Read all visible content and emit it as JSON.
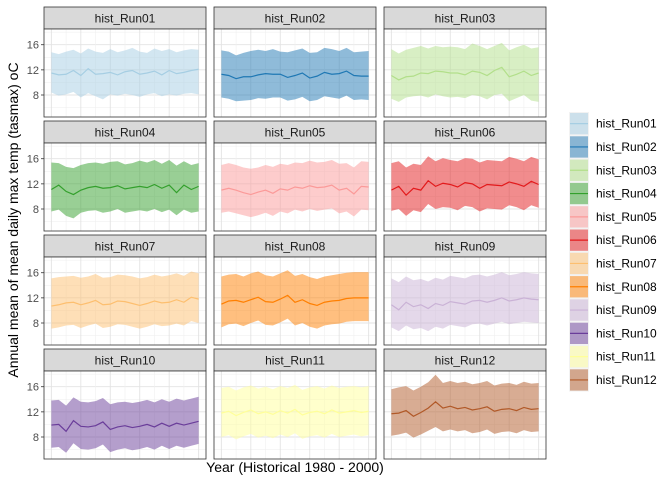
{
  "chart_data": {
    "type": "line",
    "facet_layout": "3 columns x 4 rows",
    "xlabel": "Year (Historical 1980 - 2000)",
    "ylabel": "Annual mean of mean daily max temp (tasmax) oC",
    "ylim": [
      4.5,
      18.5
    ],
    "yticks": [
      8,
      12,
      16
    ],
    "x": [
      1980,
      1981,
      1982,
      1983,
      1984,
      1985,
      1986,
      1987,
      1988,
      1989,
      1990,
      1991,
      1992,
      1993,
      1994,
      1995,
      1996,
      1997,
      1998,
      1999,
      2000
    ],
    "xlim": [
      1979,
      2001
    ],
    "grid": true,
    "legend_placement": "right",
    "band_meaning": "ribbon around annual mean",
    "series": [
      {
        "name": "hist_Run01",
        "line_color": "#a6cee3",
        "fill_color": "#a6cee3",
        "mean": [
          11.5,
          11.2,
          11.3,
          11.9,
          11.1,
          12.2,
          11.3,
          11.4,
          11.6,
          11.2,
          11.7,
          11.9,
          11.3,
          11.5,
          11.8,
          11.2,
          11.9,
          11.4,
          11.6,
          11.9,
          12.1
        ],
        "upper": [
          14.8,
          14.5,
          14.9,
          15.2,
          14.6,
          15.4,
          14.9,
          14.7,
          15.3,
          14.8,
          15.1,
          15.5,
          14.9,
          14.7,
          15.4,
          15.0,
          15.3,
          14.8,
          15.1,
          15.3,
          15.2
        ],
        "lower": [
          8.4,
          7.9,
          8.1,
          8.5,
          7.6,
          8.3,
          7.8,
          7.3,
          8.1,
          7.9,
          8.2,
          8.0,
          7.7,
          8.1,
          8.3,
          7.8,
          8.1,
          7.9,
          8.2,
          8.3,
          8.1
        ]
      },
      {
        "name": "hist_Run02",
        "line_color": "#1f78b4",
        "fill_color": "#1f78b4",
        "mean": [
          11.3,
          11.1,
          10.6,
          10.9,
          10.9,
          11.2,
          11.4,
          11.3,
          11.3,
          10.8,
          11.1,
          11.5,
          10.7,
          11.0,
          11.6,
          11.3,
          11.4,
          11.8,
          11.1,
          11.0,
          11.0
        ],
        "upper": [
          15.1,
          14.9,
          14.3,
          14.7,
          15.0,
          15.2,
          15.0,
          15.3,
          14.9,
          14.8,
          15.1,
          15.4,
          14.7,
          14.8,
          15.5,
          15.3,
          15.0,
          15.5,
          14.8,
          14.9,
          15.0
        ],
        "lower": [
          7.6,
          7.4,
          7.0,
          7.1,
          7.2,
          7.5,
          7.4,
          7.6,
          7.6,
          7.1,
          7.3,
          7.7,
          7.0,
          7.2,
          7.8,
          7.6,
          7.4,
          7.9,
          7.2,
          7.3,
          7.2
        ]
      },
      {
        "name": "hist_Run03",
        "line_color": "#b2df8a",
        "fill_color": "#b2df8a",
        "mean": [
          11.1,
          10.4,
          10.9,
          11.0,
          11.5,
          11.4,
          11.8,
          11.7,
          11.5,
          11.5,
          11.2,
          11.8,
          11.6,
          11.1,
          11.9,
          12.4,
          10.9,
          11.3,
          11.8,
          11.1,
          11.5
        ],
        "upper": [
          15.3,
          14.6,
          15.2,
          15.5,
          15.8,
          15.4,
          15.8,
          15.6,
          15.7,
          15.6,
          15.3,
          16.2,
          15.8,
          15.3,
          15.8,
          16.3,
          15.1,
          15.6,
          16.0,
          15.4,
          15.6
        ],
        "lower": [
          7.4,
          6.9,
          7.6,
          7.8,
          7.9,
          7.6,
          8.1,
          7.8,
          7.6,
          7.7,
          7.5,
          8.0,
          7.8,
          7.3,
          8.0,
          8.2,
          7.0,
          7.5,
          8.0,
          7.1,
          6.9
        ]
      },
      {
        "name": "hist_Run04",
        "line_color": "#33a02c",
        "fill_color": "#33a02c",
        "mean": [
          11.1,
          11.8,
          10.8,
          10.3,
          11.0,
          11.4,
          11.6,
          11.3,
          11.4,
          11.7,
          11.2,
          11.4,
          11.6,
          11.4,
          11.9,
          11.3,
          11.8,
          10.6,
          11.8,
          11.1,
          11.6
        ],
        "upper": [
          15.4,
          15.3,
          14.7,
          14.5,
          15.0,
          15.3,
          15.4,
          15.2,
          15.5,
          15.6,
          15.1,
          15.3,
          15.7,
          15.4,
          15.8,
          15.2,
          15.8,
          14.9,
          15.6,
          15.0,
          15.3
        ],
        "lower": [
          7.6,
          7.9,
          6.9,
          6.5,
          7.4,
          7.7,
          7.8,
          7.4,
          7.6,
          8.0,
          7.4,
          7.6,
          7.8,
          7.6,
          8.0,
          7.5,
          7.9,
          7.0,
          7.9,
          7.4,
          7.6
        ]
      },
      {
        "name": "hist_Run05",
        "line_color": "#fb9a99",
        "fill_color": "#fb9a99",
        "mean": [
          11.0,
          11.3,
          11.0,
          10.6,
          10.3,
          10.7,
          11.0,
          10.5,
          11.2,
          11.0,
          11.5,
          11.3,
          11.7,
          11.4,
          11.5,
          11.8,
          11.0,
          11.3,
          10.4,
          11.6,
          11.5
        ],
        "upper": [
          15.0,
          15.3,
          15.0,
          14.6,
          14.4,
          14.6,
          15.0,
          14.7,
          15.2,
          15.0,
          15.4,
          15.3,
          15.7,
          15.4,
          15.5,
          15.8,
          15.2,
          15.3,
          14.6,
          15.6,
          15.5
        ],
        "lower": [
          7.4,
          7.6,
          7.3,
          7.0,
          6.7,
          7.0,
          7.4,
          6.9,
          7.6,
          7.3,
          7.9,
          7.6,
          8.0,
          7.7,
          7.9,
          8.1,
          7.3,
          7.6,
          6.8,
          7.9,
          7.8
        ]
      },
      {
        "name": "hist_Run06",
        "line_color": "#e31a1c",
        "fill_color": "#e31a1c",
        "mean": [
          11.0,
          11.6,
          10.2,
          11.3,
          11.0,
          12.5,
          11.6,
          12.1,
          11.9,
          11.5,
          12.2,
          12.0,
          11.3,
          11.9,
          11.8,
          11.7,
          12.3,
          12.0,
          11.6,
          12.4,
          11.9
        ],
        "upper": [
          15.3,
          15.6,
          14.6,
          15.2,
          15.0,
          16.4,
          15.6,
          16.1,
          15.8,
          15.6,
          16.1,
          16.0,
          15.4,
          15.8,
          15.7,
          15.6,
          16.3,
          16.0,
          15.6,
          16.3,
          15.9
        ],
        "lower": [
          7.7,
          8.0,
          6.9,
          7.8,
          7.5,
          8.8,
          8.0,
          8.3,
          8.2,
          7.8,
          8.5,
          8.3,
          7.6,
          8.1,
          8.0,
          7.9,
          8.6,
          8.3,
          7.8,
          8.6,
          8.2
        ]
      },
      {
        "name": "hist_Run07",
        "line_color": "#fdbf6f",
        "fill_color": "#fdbf6f",
        "mean": [
          10.7,
          10.9,
          11.2,
          11.3,
          10.9,
          11.2,
          11.6,
          10.9,
          11.0,
          11.5,
          11.4,
          11.1,
          10.8,
          11.1,
          11.5,
          11.2,
          11.3,
          11.7,
          11.3,
          12.1,
          11.8
        ],
        "upper": [
          15.1,
          15.3,
          15.4,
          15.5,
          15.2,
          15.4,
          15.8,
          15.2,
          15.3,
          15.7,
          15.6,
          15.4,
          15.1,
          15.3,
          15.7,
          15.4,
          15.6,
          15.9,
          15.5,
          16.2,
          15.9
        ],
        "lower": [
          7.1,
          7.3,
          7.6,
          7.7,
          7.2,
          7.6,
          7.9,
          7.2,
          7.4,
          7.8,
          7.7,
          7.4,
          7.1,
          7.4,
          7.8,
          7.5,
          7.6,
          7.9,
          7.6,
          8.3,
          8.0
        ]
      },
      {
        "name": "hist_Run08",
        "line_color": "#ff7f00",
        "fill_color": "#ff7f00",
        "mean": [
          11.0,
          11.5,
          11.6,
          11.3,
          11.7,
          12.1,
          11.4,
          11.3,
          11.8,
          12.4,
          11.3,
          11.7,
          11.1,
          10.8,
          11.3,
          11.5,
          11.6,
          11.9,
          12.0,
          12.0,
          12.0
        ],
        "upper": [
          15.4,
          15.7,
          15.8,
          15.4,
          15.9,
          16.2,
          15.6,
          15.4,
          15.9,
          16.4,
          15.5,
          15.8,
          15.3,
          15.0,
          15.4,
          15.6,
          15.8,
          16.0,
          16.1,
          16.1,
          16.1
        ],
        "lower": [
          7.3,
          7.8,
          7.9,
          7.5,
          8.0,
          8.4,
          7.7,
          7.6,
          8.1,
          8.7,
          7.6,
          8.0,
          7.4,
          7.1,
          7.6,
          7.8,
          7.9,
          8.2,
          8.3,
          8.3,
          8.3
        ]
      },
      {
        "name": "hist_Run09",
        "line_color": "#cab2d6",
        "fill_color": "#cab2d6",
        "mean": [
          10.9,
          10.1,
          11.3,
          10.6,
          10.9,
          10.3,
          11.1,
          10.8,
          11.4,
          11.2,
          11.0,
          11.5,
          11.6,
          11.3,
          11.6,
          12.0,
          11.5,
          11.7,
          12.0,
          11.8,
          11.7
        ],
        "upper": [
          15.1,
          14.5,
          15.4,
          14.8,
          15.0,
          14.6,
          15.2,
          14.9,
          15.5,
          15.3,
          15.1,
          15.6,
          15.7,
          15.4,
          15.7,
          16.1,
          15.6,
          15.8,
          16.1,
          15.9,
          15.8
        ],
        "lower": [
          7.3,
          6.7,
          7.6,
          7.0,
          7.2,
          6.7,
          7.4,
          7.1,
          7.7,
          7.5,
          7.3,
          7.8,
          7.9,
          7.6,
          7.9,
          8.2,
          7.8,
          8.0,
          8.2,
          8.1,
          8.0
        ]
      },
      {
        "name": "hist_Run10",
        "line_color": "#6a3d9a",
        "fill_color": "#6a3d9a",
        "mean": [
          9.9,
          10.0,
          8.9,
          10.6,
          9.7,
          9.6,
          9.8,
          10.4,
          9.2,
          9.6,
          9.8,
          9.5,
          9.7,
          10.0,
          9.6,
          10.2,
          9.7,
          10.2,
          9.9,
          10.2,
          10.5
        ],
        "upper": [
          13.8,
          13.9,
          13.0,
          14.3,
          13.6,
          13.5,
          13.7,
          14.2,
          13.2,
          13.5,
          13.6,
          13.4,
          13.6,
          13.9,
          13.5,
          14.0,
          13.6,
          14.1,
          13.8,
          14.1,
          14.4
        ],
        "lower": [
          6.3,
          6.4,
          5.5,
          7.0,
          6.1,
          6.0,
          6.2,
          6.8,
          5.6,
          6.0,
          6.2,
          5.9,
          6.1,
          6.4,
          6.0,
          6.6,
          6.1,
          6.6,
          6.3,
          6.6,
          6.9
        ]
      },
      {
        "name": "hist_Run11",
        "line_color": "#ffff99",
        "fill_color": "#ffff99",
        "mean": [
          11.8,
          12.1,
          11.4,
          11.9,
          12.3,
          11.7,
          12.0,
          11.6,
          12.2,
          11.8,
          12.4,
          11.5,
          11.9,
          12.1,
          11.7,
          12.3,
          11.8,
          12.0,
          12.2,
          11.9,
          12.1
        ],
        "upper": [
          15.8,
          16.0,
          15.4,
          15.9,
          16.2,
          15.7,
          16.0,
          15.6,
          16.1,
          15.8,
          16.3,
          15.5,
          15.9,
          16.1,
          15.7,
          16.2,
          15.8,
          16.0,
          16.1,
          15.9,
          16.1
        ],
        "lower": [
          8.0,
          8.3,
          7.6,
          8.1,
          8.5,
          7.9,
          8.2,
          7.8,
          8.4,
          8.0,
          8.6,
          7.7,
          8.1,
          8.3,
          7.9,
          8.5,
          8.0,
          8.2,
          8.4,
          8.1,
          8.3
        ]
      },
      {
        "name": "hist_Run12",
        "line_color": "#b15928",
        "fill_color": "#b15928",
        "mean": [
          11.7,
          11.8,
          12.2,
          11.3,
          11.9,
          12.6,
          13.6,
          12.6,
          12.9,
          12.5,
          12.7,
          12.3,
          12.5,
          12.8,
          12.1,
          12.4,
          12.5,
          12.2,
          12.7,
          12.4,
          12.5
        ],
        "upper": [
          15.6,
          15.9,
          16.1,
          15.4,
          16.0,
          16.7,
          17.9,
          16.6,
          16.9,
          16.6,
          16.8,
          16.4,
          16.6,
          16.9,
          16.2,
          16.5,
          16.6,
          16.3,
          16.8,
          16.5,
          16.6
        ],
        "lower": [
          8.2,
          8.4,
          8.7,
          7.9,
          8.4,
          9.0,
          9.6,
          8.9,
          9.2,
          8.9,
          9.1,
          8.6,
          8.8,
          9.2,
          8.5,
          8.8,
          8.9,
          8.6,
          9.1,
          8.8,
          8.9
        ]
      }
    ]
  }
}
